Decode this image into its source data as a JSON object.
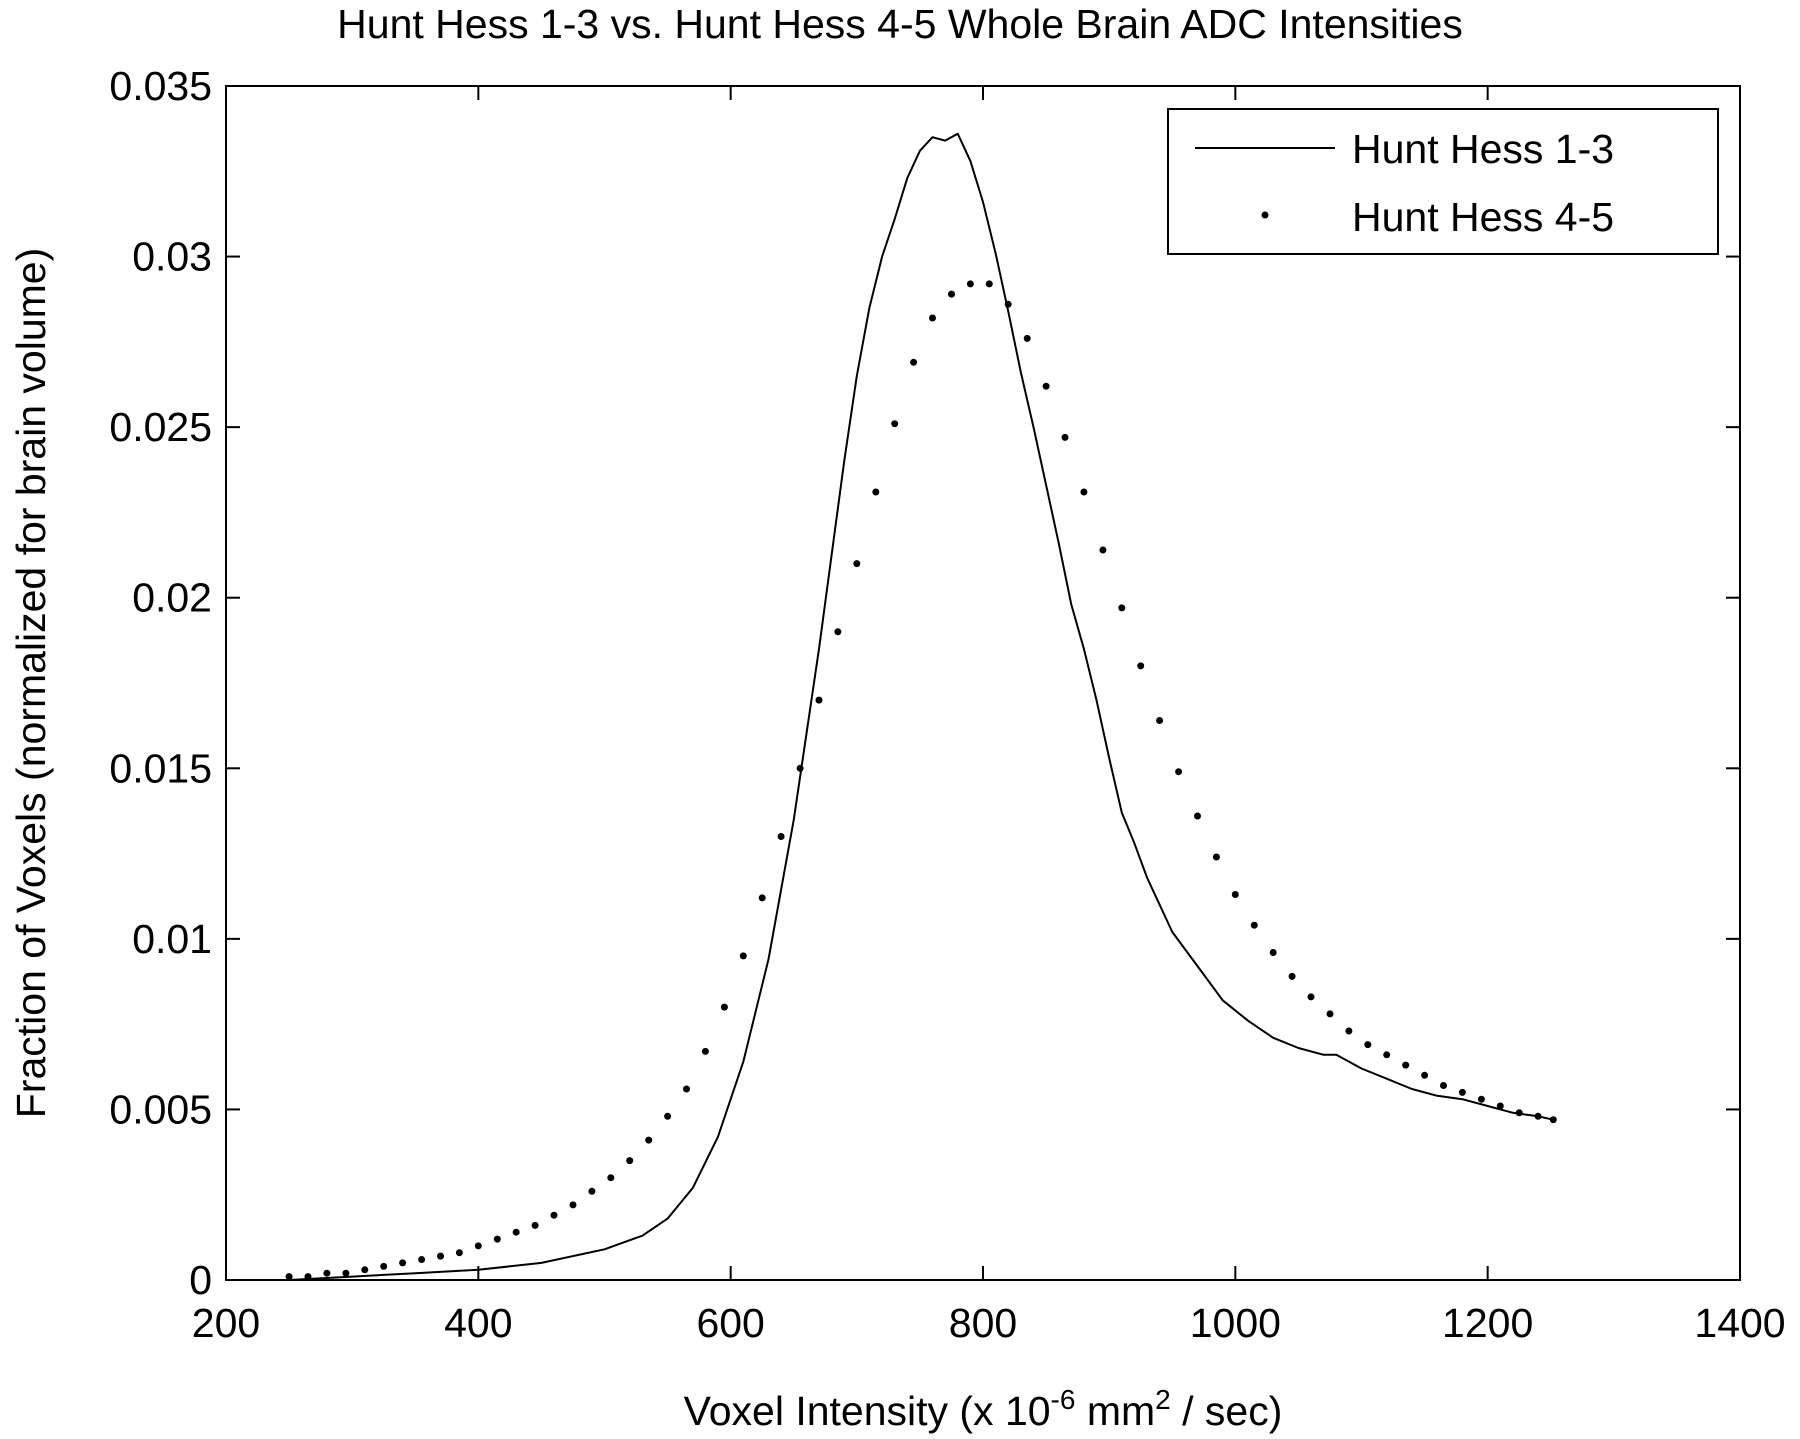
{
  "chart_data": {
    "type": "line",
    "title": "Hunt Hess 1-3 vs. Hunt Hess 4-5 Whole Brain ADC Intensities",
    "xlabel": {
      "prefix": "Voxel Intensity (x 10",
      "exp1": "-6",
      "mid": " mm",
      "exp2": "2",
      "suffix": " / sec)"
    },
    "ylabel": "Fraction of Voxels (normalized for brain volume)",
    "xlim": [
      200,
      1400
    ],
    "ylim": [
      0,
      0.035
    ],
    "xticks": [
      200,
      400,
      600,
      800,
      1000,
      1200,
      1400
    ],
    "xtick_labels": [
      "200",
      "400",
      "600",
      "800",
      "1000",
      "1200",
      "1400"
    ],
    "yticks": [
      0,
      0.005,
      0.01,
      0.015,
      0.02,
      0.025,
      0.03,
      0.035
    ],
    "ytick_labels": [
      "0",
      "0.005",
      "0.01",
      "0.015",
      "0.02",
      "0.025",
      "0.03",
      "0.035"
    ],
    "grid": false,
    "legend_position": "top-right",
    "series": [
      {
        "name": "Hunt Hess 1-3",
        "style": "solid",
        "color": "#000000",
        "x": [
          250,
          300,
          350,
          400,
          450,
          500,
          530,
          550,
          570,
          590,
          610,
          630,
          650,
          670,
          690,
          700,
          710,
          720,
          730,
          740,
          750,
          760,
          770,
          780,
          790,
          800,
          810,
          820,
          830,
          840,
          850,
          860,
          870,
          880,
          890,
          900,
          910,
          920,
          930,
          950,
          970,
          990,
          1010,
          1030,
          1050,
          1070,
          1080,
          1100,
          1120,
          1140,
          1160,
          1180,
          1200,
          1220,
          1240,
          1252
        ],
        "y": [
          0.0,
          0.0001,
          0.0002,
          0.0003,
          0.0005,
          0.0009,
          0.0013,
          0.0018,
          0.0027,
          0.0042,
          0.0064,
          0.0094,
          0.0135,
          0.0185,
          0.024,
          0.0265,
          0.0285,
          0.03,
          0.0311,
          0.0323,
          0.0331,
          0.0335,
          0.0334,
          0.0336,
          0.0328,
          0.0316,
          0.0301,
          0.0284,
          0.0266,
          0.025,
          0.0233,
          0.0216,
          0.0198,
          0.0185,
          0.017,
          0.0153,
          0.0137,
          0.0128,
          0.0118,
          0.0102,
          0.0092,
          0.0082,
          0.0076,
          0.0071,
          0.0068,
          0.0066,
          0.0066,
          0.0062,
          0.0059,
          0.0056,
          0.0054,
          0.0053,
          0.0051,
          0.0049,
          0.0048,
          0.0047
        ]
      },
      {
        "name": "Hunt Hess 4-5",
        "style": "dotted",
        "color": "#000000",
        "x": [
          250,
          265,
          280,
          295,
          310,
          325,
          340,
          355,
          370,
          385,
          400,
          415,
          430,
          445,
          460,
          475,
          490,
          505,
          520,
          535,
          550,
          565,
          580,
          595,
          610,
          625,
          640,
          655,
          670,
          685,
          700,
          715,
          730,
          745,
          760,
          775,
          790,
          805,
          820,
          835,
          850,
          865,
          880,
          895,
          910,
          925,
          940,
          955,
          970,
          985,
          1000,
          1015,
          1030,
          1045,
          1060,
          1075,
          1090,
          1105,
          1120,
          1135,
          1150,
          1165,
          1180,
          1195,
          1210,
          1225,
          1240,
          1252
        ],
        "y": [
          0.0001,
          0.0001,
          0.0002,
          0.0002,
          0.0003,
          0.0004,
          0.0005,
          0.0006,
          0.0007,
          0.0008,
          0.001,
          0.0012,
          0.0014,
          0.0016,
          0.0019,
          0.0022,
          0.0026,
          0.003,
          0.0035,
          0.0041,
          0.0048,
          0.0056,
          0.0067,
          0.008,
          0.0095,
          0.0112,
          0.013,
          0.015,
          0.017,
          0.019,
          0.021,
          0.0231,
          0.0251,
          0.0269,
          0.0282,
          0.0289,
          0.0292,
          0.0292,
          0.0286,
          0.0276,
          0.0262,
          0.0247,
          0.0231,
          0.0214,
          0.0197,
          0.018,
          0.0164,
          0.0149,
          0.0136,
          0.0124,
          0.0113,
          0.0104,
          0.0096,
          0.0089,
          0.0083,
          0.0078,
          0.0073,
          0.0069,
          0.0066,
          0.0063,
          0.006,
          0.0057,
          0.0055,
          0.0053,
          0.0051,
          0.0049,
          0.0048,
          0.0047
        ]
      }
    ]
  }
}
